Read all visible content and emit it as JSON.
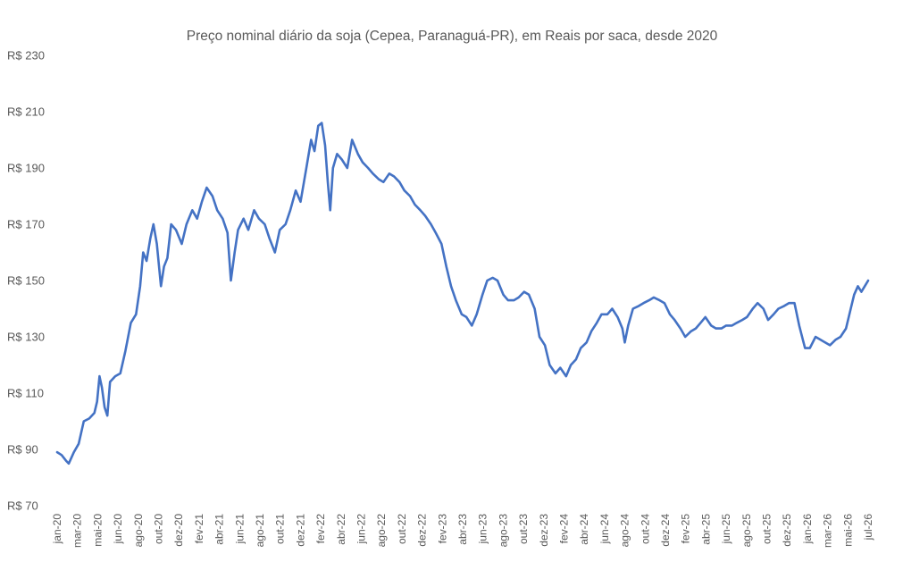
{
  "chart_data": {
    "type": "line",
    "title": "Preço nominal diário da soja (Cepea, Paranaguá-PR), em Reais por saca, desde 2020",
    "xlabel": "",
    "ylabel": "",
    "ylim": [
      70,
      230
    ],
    "y_ticks": [
      70,
      90,
      110,
      130,
      150,
      170,
      190,
      210,
      230
    ],
    "y_tick_labels": [
      "R$ 70",
      "R$ 90",
      "R$ 110",
      "R$ 130",
      "R$ 150",
      "R$ 170",
      "R$ 190",
      "R$ 210",
      "R$ 230"
    ],
    "x_tick_labels": [
      "jan-20",
      "mar-20",
      "mai-20",
      "jun-20",
      "ago-20",
      "out-20",
      "dez-20",
      "fev-21",
      "abr-21",
      "jun-21",
      "ago-21",
      "out-21",
      "dez-21",
      "fev-22",
      "abr-22",
      "jun-22",
      "ago-22",
      "out-22",
      "dez-22",
      "fev-23",
      "abr-23",
      "jun-23",
      "ago-23",
      "out-23",
      "dez-23",
      "fev-24",
      "abr-24",
      "jun-24",
      "ago-24",
      "out-24",
      "dez-24",
      "fev-25",
      "abr-25",
      "jun-25",
      "ago-25",
      "out-25",
      "dez-25",
      "jan-26",
      "mar-26",
      "mai-26",
      "jul-26"
    ],
    "grid": false,
    "legend": "none",
    "series": [
      {
        "color": "#4472C4",
        "points": [
          [
            "2020-01-02",
            89
          ],
          [
            "2020-01-15",
            88
          ],
          [
            "2020-01-28",
            86
          ],
          [
            "2020-02-05",
            85
          ],
          [
            "2020-02-20",
            89
          ],
          [
            "2020-03-05",
            92
          ],
          [
            "2020-03-20",
            100
          ],
          [
            "2020-04-05",
            101
          ],
          [
            "2020-04-20",
            103
          ],
          [
            "2020-04-28",
            107
          ],
          [
            "2020-05-05",
            116
          ],
          [
            "2020-05-12",
            112
          ],
          [
            "2020-05-20",
            105
          ],
          [
            "2020-05-28",
            102
          ],
          [
            "2020-06-05",
            114
          ],
          [
            "2020-06-20",
            116
          ],
          [
            "2020-07-05",
            117
          ],
          [
            "2020-07-20",
            125
          ],
          [
            "2020-08-05",
            135
          ],
          [
            "2020-08-20",
            138
          ],
          [
            "2020-09-01",
            148
          ],
          [
            "2020-09-10",
            160
          ],
          [
            "2020-09-20",
            157
          ],
          [
            "2020-10-01",
            165
          ],
          [
            "2020-10-10",
            170
          ],
          [
            "2020-10-20",
            163
          ],
          [
            "2020-11-01",
            148
          ],
          [
            "2020-11-10",
            155
          ],
          [
            "2020-11-20",
            158
          ],
          [
            "2020-12-01",
            170
          ],
          [
            "2020-12-15",
            168
          ],
          [
            "2021-01-01",
            163
          ],
          [
            "2021-01-15",
            170
          ],
          [
            "2021-02-01",
            175
          ],
          [
            "2021-02-15",
            172
          ],
          [
            "2021-03-01",
            178
          ],
          [
            "2021-03-15",
            183
          ],
          [
            "2021-04-01",
            180
          ],
          [
            "2021-04-15",
            175
          ],
          [
            "2021-05-01",
            172
          ],
          [
            "2021-05-15",
            167
          ],
          [
            "2021-05-25",
            150
          ],
          [
            "2021-06-05",
            160
          ],
          [
            "2021-06-15",
            168
          ],
          [
            "2021-07-01",
            172
          ],
          [
            "2021-07-15",
            168
          ],
          [
            "2021-08-01",
            175
          ],
          [
            "2021-08-15",
            172
          ],
          [
            "2021-09-01",
            170
          ],
          [
            "2021-09-15",
            165
          ],
          [
            "2021-10-01",
            160
          ],
          [
            "2021-10-15",
            168
          ],
          [
            "2021-11-01",
            170
          ],
          [
            "2021-11-15",
            175
          ],
          [
            "2021-12-01",
            182
          ],
          [
            "2021-12-15",
            178
          ],
          [
            "2022-01-01",
            190
          ],
          [
            "2022-01-15",
            200
          ],
          [
            "2022-01-25",
            196
          ],
          [
            "2022-02-05",
            205
          ],
          [
            "2022-02-15",
            206
          ],
          [
            "2022-02-25",
            198
          ],
          [
            "2022-03-05",
            185
          ],
          [
            "2022-03-12",
            175
          ],
          [
            "2022-03-20",
            190
          ],
          [
            "2022-04-01",
            195
          ],
          [
            "2022-04-15",
            193
          ],
          [
            "2022-05-01",
            190
          ],
          [
            "2022-05-15",
            200
          ],
          [
            "2022-06-01",
            195
          ],
          [
            "2022-06-15",
            192
          ],
          [
            "2022-07-01",
            190
          ],
          [
            "2022-07-15",
            188
          ],
          [
            "2022-08-01",
            186
          ],
          [
            "2022-08-15",
            185
          ],
          [
            "2022-09-01",
            188
          ],
          [
            "2022-09-15",
            187
          ],
          [
            "2022-10-01",
            185
          ],
          [
            "2022-10-15",
            182
          ],
          [
            "2022-11-01",
            180
          ],
          [
            "2022-11-15",
            177
          ],
          [
            "2022-12-01",
            175
          ],
          [
            "2022-12-15",
            173
          ],
          [
            "2023-01-01",
            170
          ],
          [
            "2023-01-15",
            167
          ],
          [
            "2023-02-01",
            163
          ],
          [
            "2023-02-15",
            155
          ],
          [
            "2023-03-01",
            148
          ],
          [
            "2023-03-15",
            143
          ],
          [
            "2023-04-01",
            138
          ],
          [
            "2023-04-15",
            137
          ],
          [
            "2023-05-01",
            134
          ],
          [
            "2023-05-15",
            138
          ],
          [
            "2023-06-01",
            145
          ],
          [
            "2023-06-15",
            150
          ],
          [
            "2023-07-01",
            151
          ],
          [
            "2023-07-15",
            150
          ],
          [
            "2023-08-01",
            145
          ],
          [
            "2023-08-15",
            143
          ],
          [
            "2023-09-01",
            143
          ],
          [
            "2023-09-15",
            144
          ],
          [
            "2023-10-01",
            146
          ],
          [
            "2023-10-15",
            145
          ],
          [
            "2023-11-01",
            140
          ],
          [
            "2023-11-15",
            130
          ],
          [
            "2023-12-01",
            127
          ],
          [
            "2023-12-15",
            120
          ],
          [
            "2024-01-01",
            117
          ],
          [
            "2024-01-15",
            119
          ],
          [
            "2024-02-01",
            116
          ],
          [
            "2024-02-15",
            120
          ],
          [
            "2024-03-01",
            122
          ],
          [
            "2024-03-15",
            126
          ],
          [
            "2024-04-01",
            128
          ],
          [
            "2024-04-15",
            132
          ],
          [
            "2024-05-01",
            135
          ],
          [
            "2024-05-15",
            138
          ],
          [
            "2024-06-01",
            138
          ],
          [
            "2024-06-15",
            140
          ],
          [
            "2024-07-01",
            137
          ],
          [
            "2024-07-15",
            133
          ],
          [
            "2024-07-22",
            128
          ],
          [
            "2024-08-01",
            134
          ],
          [
            "2024-08-15",
            140
          ],
          [
            "2024-09-01",
            141
          ],
          [
            "2024-09-15",
            142
          ],
          [
            "2024-10-01",
            143
          ],
          [
            "2024-10-15",
            144
          ],
          [
            "2024-11-01",
            143
          ],
          [
            "2024-11-15",
            142
          ],
          [
            "2024-12-01",
            138
          ],
          [
            "2024-12-15",
            136
          ],
          [
            "2025-01-01",
            133
          ],
          [
            "2025-01-15",
            130
          ],
          [
            "2025-02-01",
            132
          ],
          [
            "2025-02-15",
            133
          ],
          [
            "2025-03-01",
            135
          ],
          [
            "2025-03-15",
            137
          ],
          [
            "2025-04-01",
            134
          ],
          [
            "2025-04-15",
            133
          ],
          [
            "2025-05-01",
            133
          ],
          [
            "2025-05-15",
            134
          ],
          [
            "2025-06-01",
            134
          ],
          [
            "2025-06-15",
            135
          ],
          [
            "2025-07-01",
            136
          ],
          [
            "2025-07-15",
            137
          ],
          [
            "2025-08-01",
            140
          ],
          [
            "2025-08-15",
            142
          ],
          [
            "2025-09-01",
            140
          ],
          [
            "2025-09-15",
            136
          ],
          [
            "2025-10-01",
            138
          ],
          [
            "2025-10-15",
            140
          ],
          [
            "2025-11-01",
            141
          ],
          [
            "2025-11-15",
            142
          ],
          [
            "2025-12-01",
            142
          ],
          [
            "2025-12-15",
            134
          ],
          [
            "2026-01-01",
            126
          ],
          [
            "2026-01-15",
            126
          ],
          [
            "2026-02-01",
            130
          ],
          [
            "2026-02-15",
            129
          ],
          [
            "2026-03-01",
            128
          ],
          [
            "2026-03-15",
            127
          ],
          [
            "2026-04-01",
            129
          ],
          [
            "2026-04-15",
            130
          ],
          [
            "2026-05-01",
            133
          ],
          [
            "2026-05-15",
            140
          ],
          [
            "2026-05-25",
            145
          ],
          [
            "2026-06-05",
            148
          ],
          [
            "2026-06-15",
            146
          ],
          [
            "2026-06-25",
            148
          ],
          [
            "2026-07-05",
            150
          ]
        ]
      }
    ]
  }
}
